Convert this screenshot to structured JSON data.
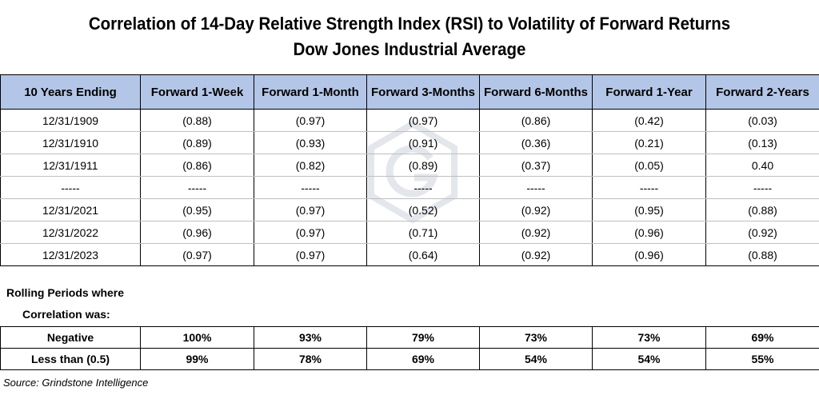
{
  "title": {
    "line1": "Correlation of 14-Day Relative Strength Index (RSI) to Volatility of Forward Returns",
    "line2": "Dow Jones Industrial Average"
  },
  "chart_data": {
    "type": "table",
    "columns": [
      "10 Years Ending",
      "Forward 1-Week",
      "Forward 1-Month",
      "Forward 3-Months",
      "Forward 6-Months",
      "Forward 1-Year",
      "Forward 2-Years"
    ],
    "rows": [
      [
        "12/31/1909",
        "(0.88)",
        "(0.97)",
        "(0.97)",
        "(0.86)",
        "(0.42)",
        "(0.03)"
      ],
      [
        "12/31/1910",
        "(0.89)",
        "(0.93)",
        "(0.91)",
        "(0.36)",
        "(0.21)",
        "(0.13)"
      ],
      [
        "12/31/1911",
        "(0.86)",
        "(0.82)",
        "(0.89)",
        "(0.37)",
        "(0.05)",
        "0.40"
      ],
      [
        "-----",
        "-----",
        "-----",
        "-----",
        "-----",
        "-----",
        "-----"
      ],
      [
        "12/31/2021",
        "(0.95)",
        "(0.97)",
        "(0.52)",
        "(0.92)",
        "(0.95)",
        "(0.88)"
      ],
      [
        "12/31/2022",
        "(0.96)",
        "(0.97)",
        "(0.71)",
        "(0.92)",
        "(0.96)",
        "(0.92)"
      ],
      [
        "12/31/2023",
        "(0.97)",
        "(0.97)",
        "(0.64)",
        "(0.92)",
        "(0.96)",
        "(0.88)"
      ]
    ],
    "summary_label": [
      "Rolling Periods where",
      "Correlation was:"
    ],
    "summary_rows": [
      [
        "Negative",
        "100%",
        "93%",
        "79%",
        "73%",
        "73%",
        "69%"
      ],
      [
        "Less than (0.5)",
        "99%",
        "78%",
        "69%",
        "54%",
        "54%",
        "55%"
      ]
    ]
  },
  "source": "Source: Grindstone Intelligence",
  "colors": {
    "header_fill": "#b4c6e7",
    "watermark": "#1f3864"
  }
}
